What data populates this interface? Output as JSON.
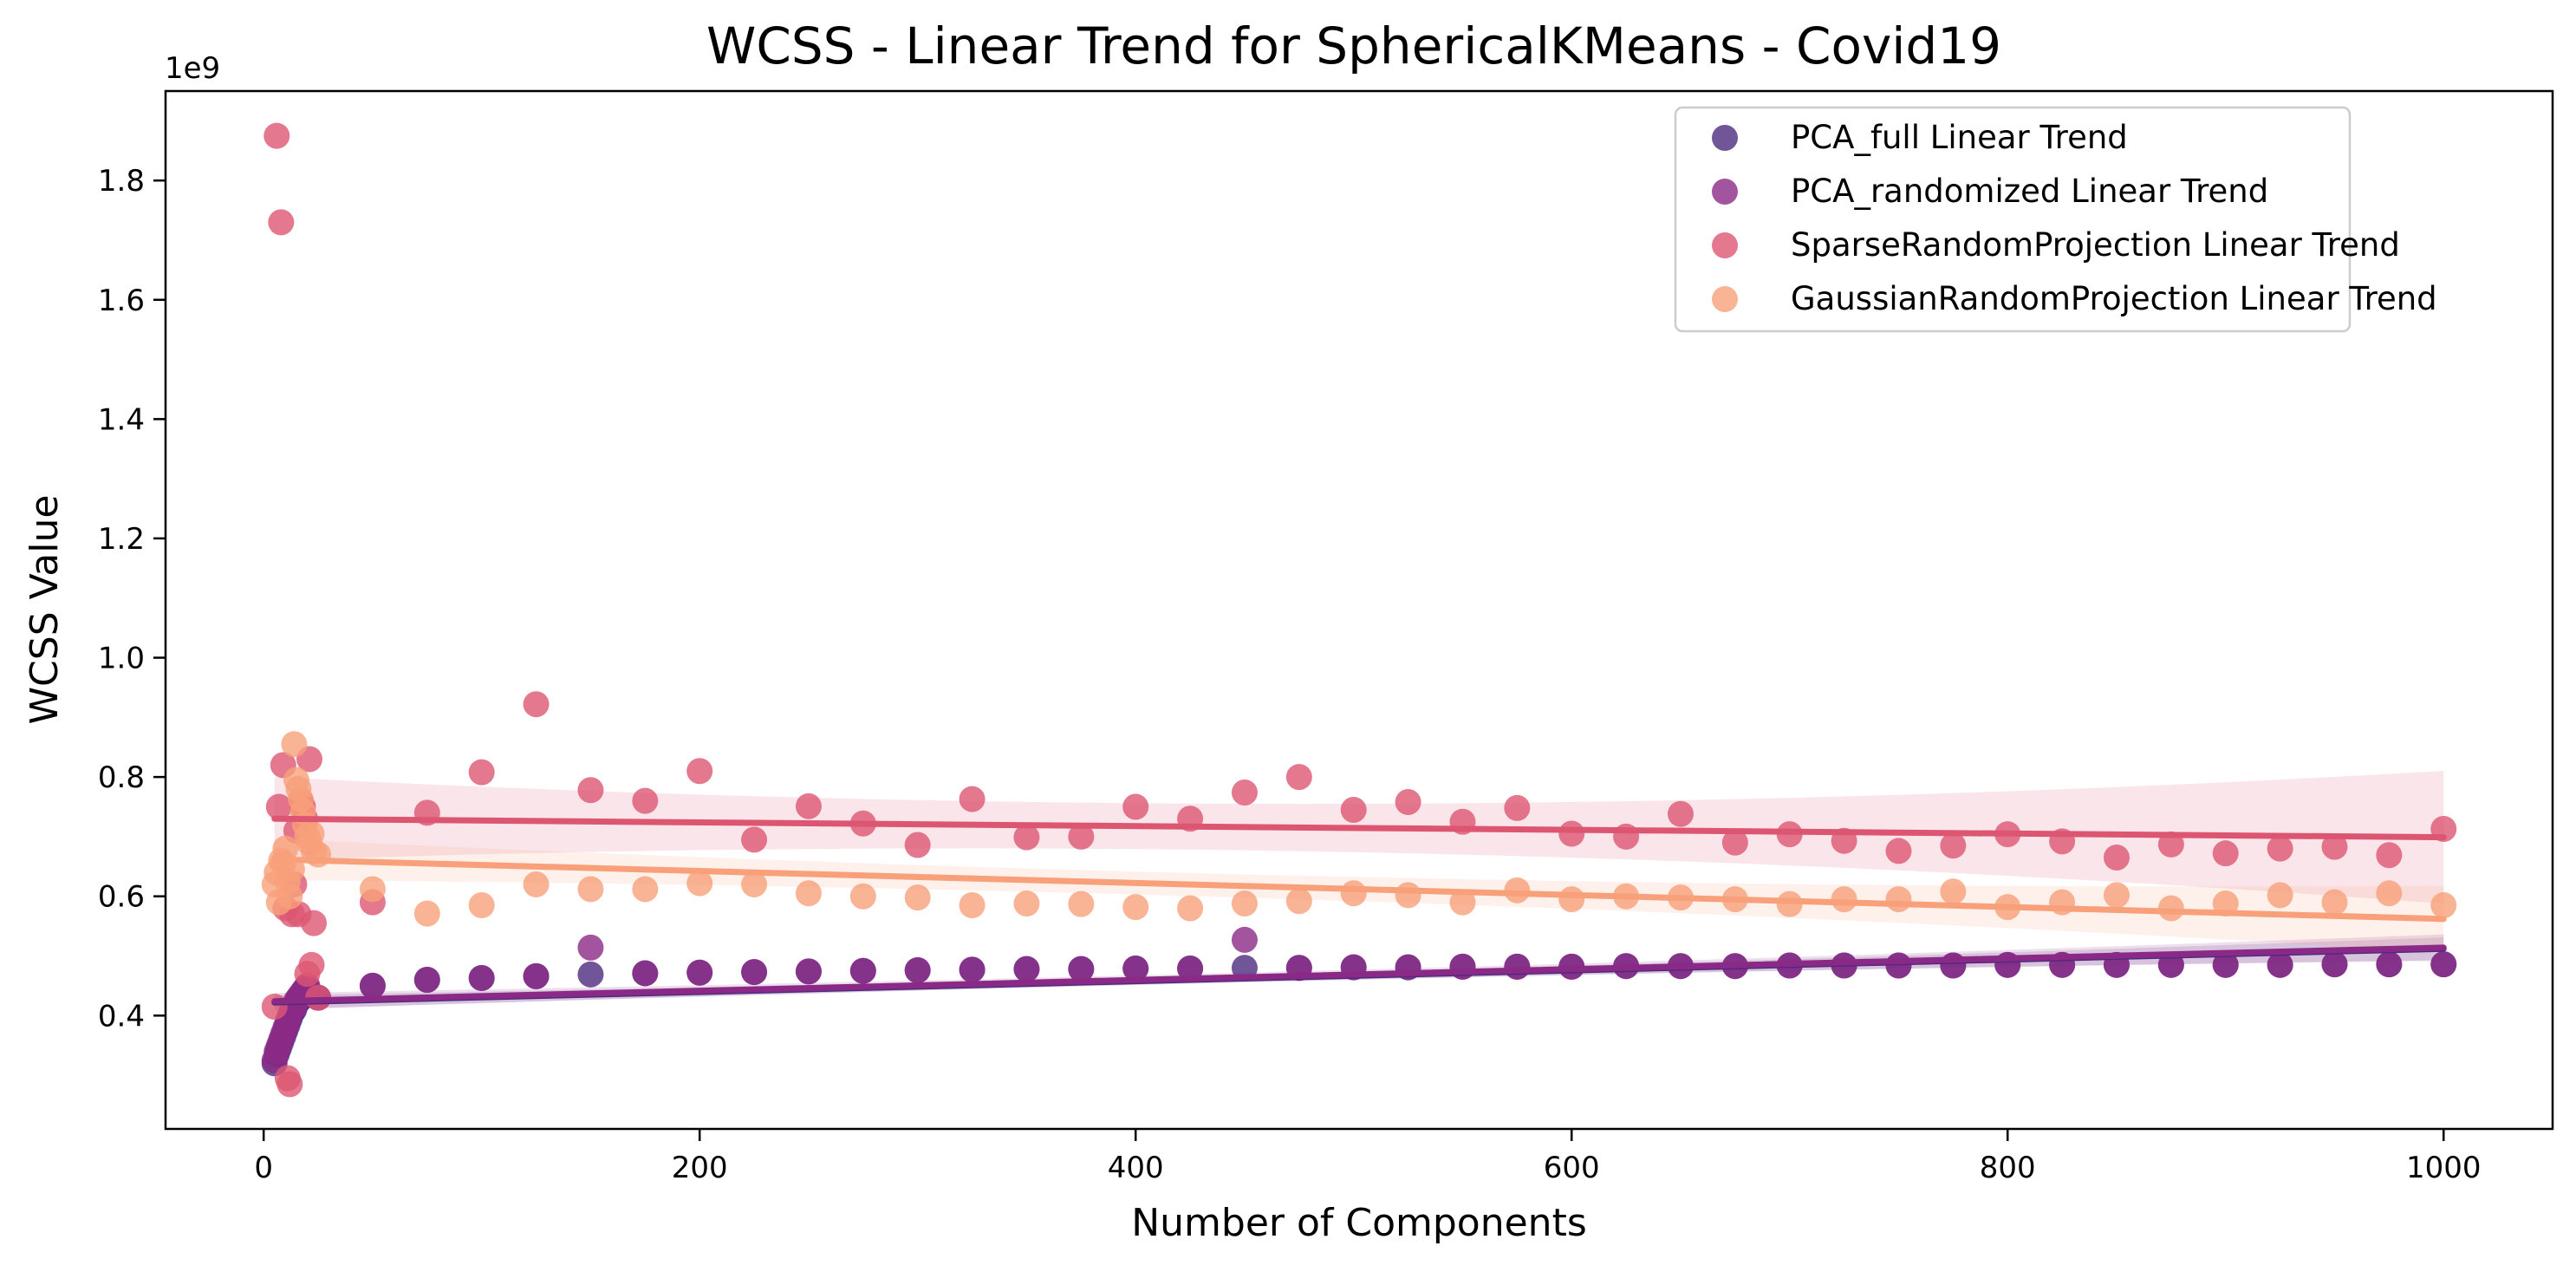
{
  "chart_data": {
    "type": "scatter",
    "title": "WCSS - Linear Trend for SphericalKMeans - Covid19",
    "xlabel": "Number of Components",
    "ylabel": "WCSS Value",
    "y_offset_label": "1e9",
    "xlim": [
      -45,
      1050
    ],
    "ylim": [
      0.21,
      1.95
    ],
    "x_ticks": [
      0,
      200,
      400,
      600,
      800,
      1000
    ],
    "y_ticks": [
      0.4,
      0.6,
      0.8,
      1.0,
      1.2,
      1.4,
      1.6,
      1.8
    ],
    "x_tick_labels": [
      "0",
      "200",
      "400",
      "600",
      "800",
      "1000"
    ],
    "y_tick_labels": [
      "0.4",
      "0.6",
      "0.8",
      "1.0",
      "1.2",
      "1.4",
      "1.6",
      "1.8"
    ],
    "grid": false,
    "legend_position": "top-right",
    "series": [
      {
        "name": "PCA_full Linear Trend",
        "color": "#4c2a80",
        "x": [
          5,
          6,
          7,
          8,
          9,
          10,
          11,
          12,
          13,
          14,
          15,
          16,
          17,
          18,
          19,
          20,
          25,
          50,
          75,
          100,
          125,
          150,
          175,
          200,
          225,
          250,
          275,
          300,
          325,
          350,
          375,
          400,
          425,
          450,
          475,
          500,
          525,
          550,
          575,
          600,
          625,
          650,
          675,
          700,
          725,
          750,
          775,
          800,
          825,
          850,
          875,
          900,
          925,
          950,
          975,
          1000
        ],
        "y": [
          0.32,
          0.335,
          0.345,
          0.355,
          0.365,
          0.375,
          0.385,
          0.395,
          0.405,
          0.41,
          0.42,
          0.425,
          0.43,
          0.435,
          0.44,
          0.445,
          0.43,
          0.45,
          0.46,
          0.463,
          0.466,
          0.469,
          0.471,
          0.472,
          0.473,
          0.474,
          0.475,
          0.476,
          0.477,
          0.478,
          0.478,
          0.479,
          0.479,
          0.48,
          0.48,
          0.481,
          0.481,
          0.482,
          0.482,
          0.482,
          0.483,
          0.483,
          0.483,
          0.484,
          0.484,
          0.484,
          0.484,
          0.485,
          0.485,
          0.485,
          0.485,
          0.485,
          0.485,
          0.486,
          0.486,
          0.486
        ],
        "trend": [
          0.422,
          0.512
        ]
      },
      {
        "name": "PCA_randomized Linear Trend",
        "color": "#8b2a86",
        "x": [
          5,
          6,
          7,
          8,
          9,
          10,
          11,
          12,
          13,
          14,
          15,
          16,
          17,
          18,
          19,
          20,
          25,
          50,
          75,
          100,
          125,
          150,
          175,
          200,
          225,
          250,
          275,
          300,
          325,
          350,
          375,
          400,
          425,
          450,
          475,
          500,
          525,
          550,
          575,
          600,
          625,
          650,
          675,
          700,
          725,
          750,
          775,
          800,
          825,
          850,
          875,
          900,
          925,
          950,
          975,
          1000
        ],
        "y": [
          0.325,
          0.34,
          0.35,
          0.36,
          0.37,
          0.38,
          0.39,
          0.4,
          0.41,
          0.415,
          0.425,
          0.43,
          0.435,
          0.44,
          0.445,
          0.45,
          0.43,
          0.45,
          0.46,
          0.463,
          0.466,
          0.514,
          0.471,
          0.472,
          0.473,
          0.474,
          0.475,
          0.476,
          0.477,
          0.478,
          0.478,
          0.479,
          0.479,
          0.527,
          0.48,
          0.481,
          0.481,
          0.482,
          0.482,
          0.482,
          0.483,
          0.483,
          0.483,
          0.484,
          0.484,
          0.484,
          0.484,
          0.485,
          0.485,
          0.485,
          0.485,
          0.485,
          0.485,
          0.486,
          0.486,
          0.486
        ],
        "trend": [
          0.424,
          0.514
        ]
      },
      {
        "name": "SparseRandomProjection Linear Trend",
        "color": "#dc5672",
        "x": [
          5,
          6,
          7,
          8,
          9,
          10,
          11,
          12,
          13,
          14,
          15,
          16,
          17,
          18,
          19,
          20,
          21,
          22,
          23,
          25,
          50,
          75,
          100,
          125,
          150,
          175,
          200,
          225,
          250,
          275,
          300,
          325,
          350,
          375,
          400,
          425,
          450,
          475,
          500,
          525,
          550,
          575,
          600,
          625,
          650,
          675,
          700,
          725,
          750,
          775,
          800,
          825,
          850,
          875,
          900,
          925,
          950,
          975,
          1000
        ],
        "y": [
          0.415,
          1.875,
          0.75,
          1.73,
          0.82,
          0.58,
          0.295,
          0.285,
          0.57,
          0.62,
          0.71,
          0.57,
          0.76,
          0.75,
          0.73,
          0.47,
          0.83,
          0.485,
          0.555,
          0.43,
          0.59,
          0.74,
          0.808,
          0.922,
          0.778,
          0.76,
          0.81,
          0.695,
          0.751,
          0.722,
          0.686,
          0.763,
          0.699,
          0.7,
          0.75,
          0.73,
          0.774,
          0.8,
          0.745,
          0.758,
          0.725,
          0.748,
          0.705,
          0.7,
          0.738,
          0.69,
          0.704,
          0.693,
          0.676,
          0.685,
          0.704,
          0.692,
          0.665,
          0.687,
          0.672,
          0.68,
          0.683,
          0.669,
          0.713
        ],
        "trend": [
          0.73,
          0.699
        ]
      },
      {
        "name": "GaussianRandomProjection Linear Trend",
        "color": "#f8a07a",
        "x": [
          5,
          6,
          7,
          8,
          9,
          10,
          11,
          12,
          13,
          14,
          15,
          16,
          17,
          18,
          19,
          20,
          21,
          22,
          23,
          25,
          50,
          75,
          100,
          125,
          150,
          175,
          200,
          225,
          250,
          275,
          300,
          325,
          350,
          375,
          400,
          425,
          450,
          475,
          500,
          525,
          550,
          575,
          600,
          625,
          650,
          675,
          700,
          725,
          750,
          775,
          800,
          825,
          850,
          875,
          900,
          925,
          950,
          975,
          1000
        ],
        "y": [
          0.62,
          0.64,
          0.59,
          0.66,
          0.655,
          0.68,
          0.625,
          0.6,
          0.645,
          0.855,
          0.795,
          0.78,
          0.762,
          0.742,
          0.72,
          0.7,
          0.69,
          0.705,
          0.675,
          0.67,
          0.612,
          0.571,
          0.585,
          0.62,
          0.612,
          0.612,
          0.622,
          0.62,
          0.605,
          0.6,
          0.598,
          0.585,
          0.588,
          0.587,
          0.582,
          0.58,
          0.588,
          0.592,
          0.605,
          0.602,
          0.59,
          0.61,
          0.595,
          0.6,
          0.598,
          0.595,
          0.587,
          0.595,
          0.595,
          0.608,
          0.582,
          0.59,
          0.602,
          0.58,
          0.588,
          0.602,
          0.59,
          0.605,
          0.585
        ],
        "trend": [
          0.662,
          0.562
        ]
      }
    ]
  }
}
